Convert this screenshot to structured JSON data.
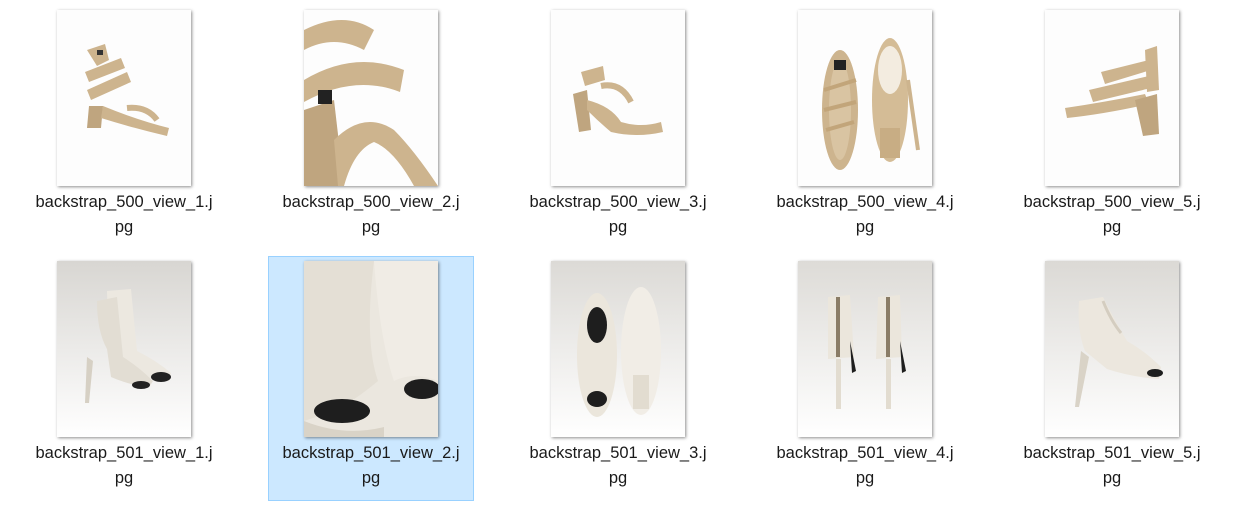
{
  "files": [
    {
      "name_line1": "backstrap_500_view_1.j",
      "name_line2": "pg",
      "selected": false,
      "thumb": "sandal-side-view-beige"
    },
    {
      "name_line1": "backstrap_500_view_2.j",
      "name_line2": "pg",
      "selected": false,
      "thumb": "sandal-closeup-beige"
    },
    {
      "name_line1": "backstrap_500_view_3.j",
      "name_line2": "pg",
      "selected": false,
      "thumb": "sandal-inner-side-beige"
    },
    {
      "name_line1": "backstrap_500_view_4.j",
      "name_line2": "pg",
      "selected": false,
      "thumb": "sandal-top-sole-beige"
    },
    {
      "name_line1": "backstrap_500_view_5.j",
      "name_line2": "pg",
      "selected": false,
      "thumb": "sandal-back-angle-beige"
    },
    {
      "name_line1": "backstrap_501_view_1.j",
      "name_line2": "pg",
      "selected": false,
      "thumb": "bootie-pair-white"
    },
    {
      "name_line1": "backstrap_501_view_2.j",
      "name_line2": "pg",
      "selected": true,
      "thumb": "bootie-closeup-white"
    },
    {
      "name_line1": "backstrap_501_view_3.j",
      "name_line2": "pg",
      "selected": false,
      "thumb": "bootie-top-sole-white"
    },
    {
      "name_line1": "backstrap_501_view_4.j",
      "name_line2": "pg",
      "selected": false,
      "thumb": "bootie-back-white"
    },
    {
      "name_line1": "backstrap_501_view_5.j",
      "name_line2": "pg",
      "selected": false,
      "thumb": "bootie-side-white"
    }
  ],
  "colors": {
    "selection_bg": "#cce8ff",
    "selection_border": "#99d1ff",
    "sandal": "#cdb48e",
    "bootie": "#e6e1d8"
  }
}
